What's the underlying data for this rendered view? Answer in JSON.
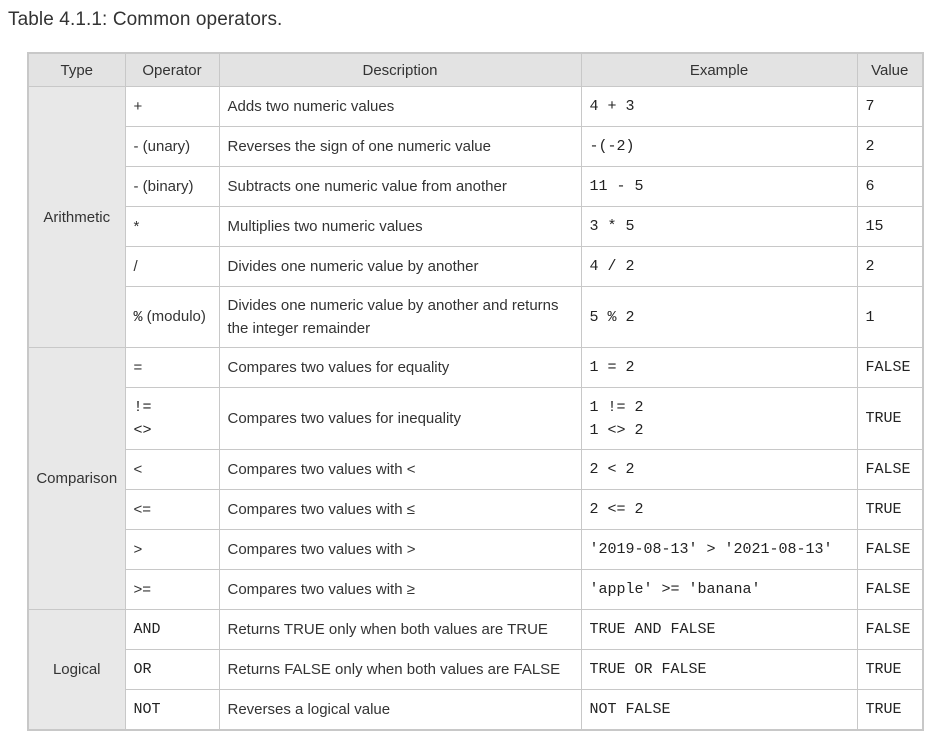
{
  "caption": "Table 4.1.1: Common operators.",
  "headers": [
    "Type",
    "Operator",
    "Description",
    "Example",
    "Value"
  ],
  "groups": [
    {
      "type": "Arithmetic",
      "rows": [
        {
          "op": [
            "+"
          ],
          "op_suffix": "",
          "desc": "Adds two numeric values",
          "example": [
            "4 + 3"
          ],
          "value": "7"
        },
        {
          "op": [
            "- (unary)"
          ],
          "op_suffix": "",
          "desc": "Reverses the sign of one numeric value",
          "example": [
            "-(-2)"
          ],
          "value": "2"
        },
        {
          "op": [
            "- (binary)"
          ],
          "op_suffix": "",
          "desc": "Subtracts one numeric value from another",
          "example": [
            "11 - 5"
          ],
          "value": "6"
        },
        {
          "op": [
            "*"
          ],
          "op_suffix": "",
          "desc": "Multiplies two numeric values",
          "example": [
            "3 * 5"
          ],
          "value": "15"
        },
        {
          "op": [
            "/"
          ],
          "op_suffix": "",
          "desc": "Divides one numeric value by another",
          "example": [
            "4 / 2"
          ],
          "value": "2"
        },
        {
          "op": [
            "%"
          ],
          "op_suffix": " (modulo)",
          "desc": "Divides one numeric value by another and returns the integer remainder",
          "example": [
            "5 % 2"
          ],
          "value": "1"
        }
      ]
    },
    {
      "type": "Comparison",
      "rows": [
        {
          "op": [
            "="
          ],
          "op_suffix": "",
          "desc": "Compares two values for equality",
          "example": [
            "1 = 2"
          ],
          "value": "FALSE"
        },
        {
          "op": [
            "!=",
            "<>"
          ],
          "op_suffix": "",
          "desc": "Compares two values for inequality",
          "example": [
            "1 != 2",
            "1 <> 2"
          ],
          "value": "TRUE"
        },
        {
          "op": [
            "<"
          ],
          "op_suffix": "",
          "desc": "Compares two values with <",
          "example": [
            "2 < 2"
          ],
          "value": "FALSE"
        },
        {
          "op": [
            "<="
          ],
          "op_suffix": "",
          "desc": "Compares two values with ≤",
          "example": [
            "2 <= 2"
          ],
          "value": "TRUE"
        },
        {
          "op": [
            ">"
          ],
          "op_suffix": "",
          "desc": "Compares two values with >",
          "example": [
            "'2019-08-13' > '2021-08-13'"
          ],
          "value": "FALSE"
        },
        {
          "op": [
            ">="
          ],
          "op_suffix": "",
          "desc": "Compares two values with ≥",
          "example": [
            "'apple' >= 'banana'"
          ],
          "value": "FALSE"
        }
      ]
    },
    {
      "type": "Logical",
      "rows": [
        {
          "op": [
            "AND"
          ],
          "op_suffix": "",
          "desc": "Returns TRUE only when both values are TRUE",
          "example": [
            "TRUE AND FALSE"
          ],
          "value": "FALSE"
        },
        {
          "op": [
            "OR"
          ],
          "op_suffix": "",
          "desc": "Returns FALSE only when both values are FALSE",
          "example": [
            "TRUE OR FALSE"
          ],
          "value": "TRUE"
        },
        {
          "op": [
            "NOT"
          ],
          "op_suffix": "",
          "desc": "Reverses a logical value",
          "example": [
            "NOT FALSE"
          ],
          "value": "TRUE"
        }
      ]
    }
  ]
}
